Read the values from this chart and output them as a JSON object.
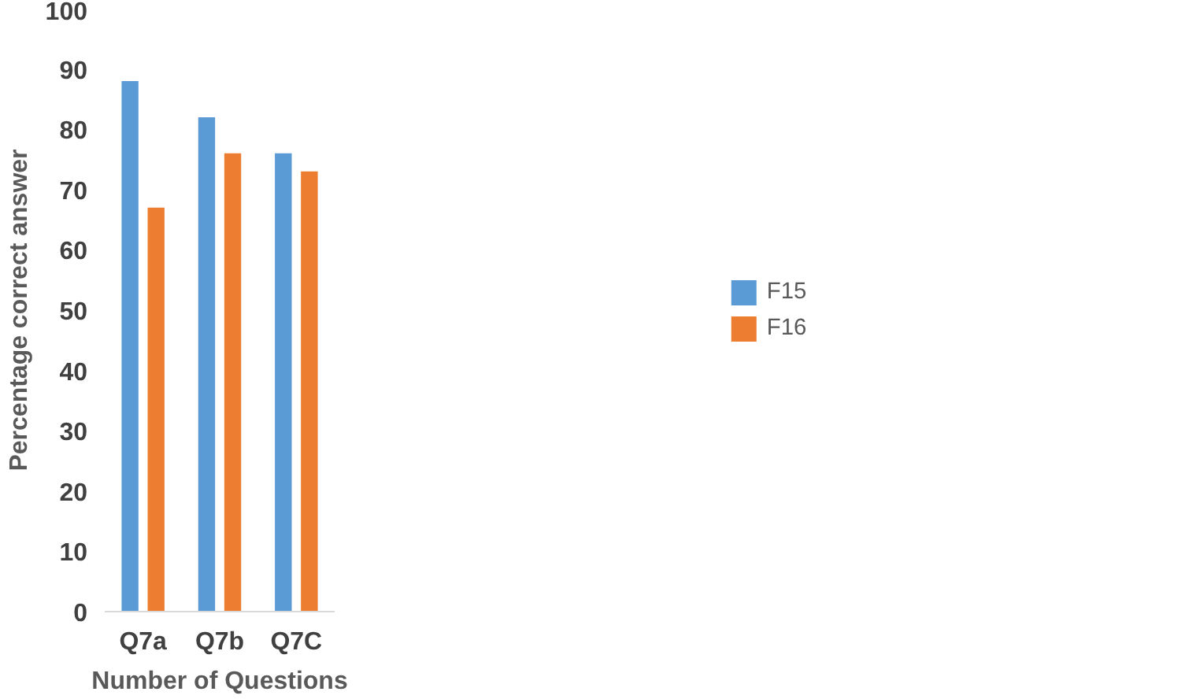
{
  "chart_data": {
    "type": "bar",
    "xlabel": "Number of Questions",
    "ylabel": "Percentage correct answer",
    "categories": [
      "Q7a",
      "Q7b",
      "Q7C"
    ],
    "series": [
      {
        "name": "F15",
        "color": "#5b9bd5",
        "values": [
          88,
          82,
          76
        ]
      },
      {
        "name": "F16",
        "color": "#ed7d31",
        "values": [
          67,
          76,
          73
        ]
      }
    ],
    "ylim": [
      0,
      100
    ],
    "yticks": [
      0,
      10,
      20,
      30,
      40,
      50,
      60,
      70,
      80,
      90,
      100
    ],
    "grid": false,
    "legend": "right"
  }
}
